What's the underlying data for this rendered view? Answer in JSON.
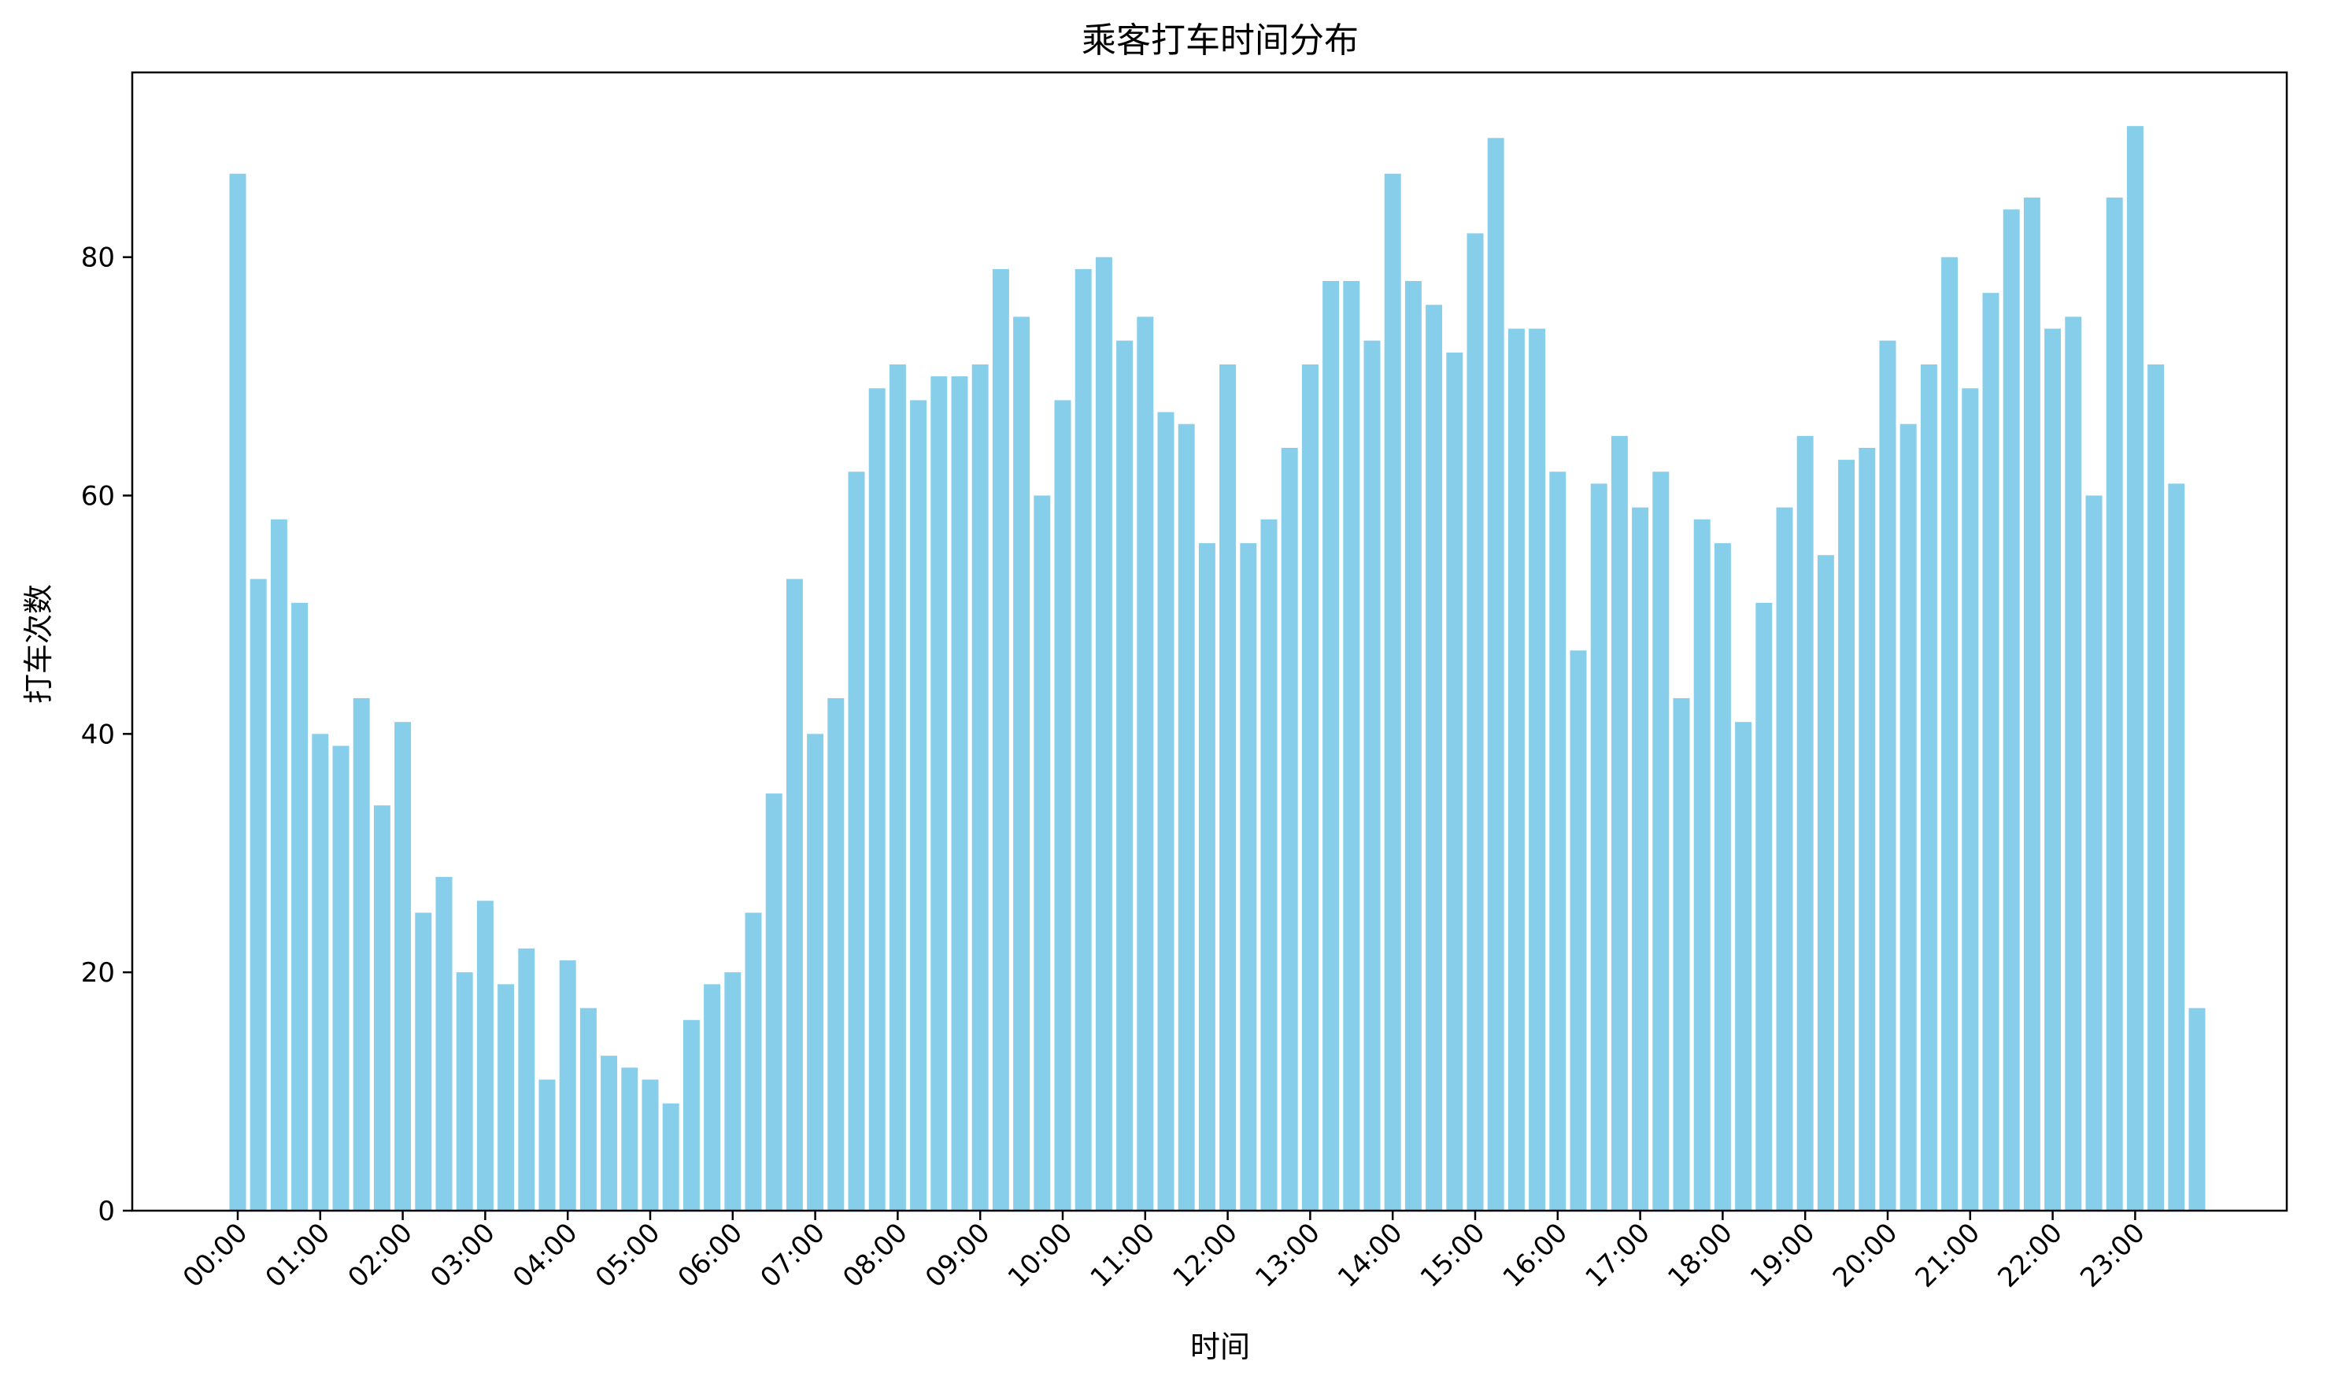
{
  "chart_data": {
    "type": "bar",
    "title": "乘客打车时间分布",
    "xlabel": "时间",
    "ylabel": "打车次数",
    "bar_color": "#87ceeb",
    "axis_color": "#000000",
    "ylim": [
      0,
      95.5
    ],
    "y_ticks": [
      0,
      20,
      40,
      60,
      80
    ],
    "x_ticks": [
      "00:00",
      "01:00",
      "02:00",
      "03:00",
      "04:00",
      "05:00",
      "06:00",
      "07:00",
      "08:00",
      "09:00",
      "10:00",
      "11:00",
      "12:00",
      "13:00",
      "14:00",
      "15:00",
      "16:00",
      "17:00",
      "18:00",
      "19:00",
      "20:00",
      "21:00",
      "22:00",
      "23:00"
    ],
    "bars_per_hour": 4,
    "interval_minutes": 15,
    "values": [
      87,
      53,
      58,
      51,
      40,
      39,
      43,
      34,
      41,
      25,
      28,
      20,
      26,
      19,
      22,
      11,
      21,
      17,
      13,
      12,
      11,
      9,
      16,
      19,
      20,
      25,
      35,
      53,
      40,
      43,
      62,
      69,
      71,
      68,
      70,
      70,
      71,
      79,
      75,
      60,
      68,
      79,
      80,
      73,
      75,
      67,
      66,
      56,
      71,
      56,
      58,
      64,
      71,
      78,
      78,
      73,
      87,
      78,
      76,
      72,
      82,
      90,
      74,
      74,
      62,
      47,
      61,
      65,
      59,
      62,
      43,
      58,
      56,
      41,
      51,
      59,
      65,
      55,
      63,
      64,
      73,
      66,
      71,
      80,
      69,
      77,
      84,
      85,
      74,
      75,
      60,
      85,
      91,
      71,
      61,
      17
    ],
    "grid": false,
    "legend": "none"
  }
}
